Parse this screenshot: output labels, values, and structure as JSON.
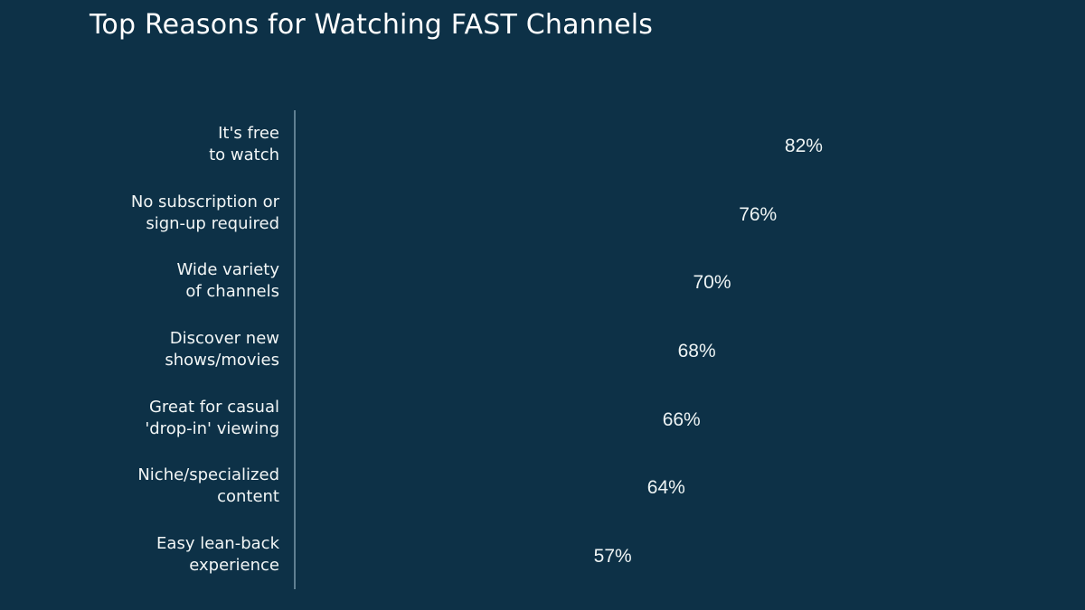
{
  "chart_data": {
    "type": "bar",
    "orientation": "horizontal",
    "title": "Top Reasons for Watching FAST Channels",
    "xlabel": "",
    "ylabel": "",
    "grid": false,
    "legend": null,
    "xlim": [
      0,
      100
    ],
    "categories": [
      "It's free to watch",
      "No subscription or sign-up required",
      "Wide variety of channels",
      "Discover new shows/movies",
      "Great for casual 'drop-in' viewing",
      "Niche/specialized content",
      "Easy lean-back experience"
    ],
    "values": [
      82,
      76,
      70,
      68,
      66,
      64,
      57
    ],
    "value_labels": [
      "82%",
      "76%",
      "70%",
      "68%",
      "66%",
      "64%",
      "57%"
    ]
  },
  "colors": {
    "background": "#0d3147",
    "bar": "#0d3147",
    "axis": "#5f7f92",
    "text": "#f2f6f6"
  },
  "labels": [
    {
      "line1": "It's free",
      "line2": "to watch"
    },
    {
      "line1": "No subscription or",
      "line2": "sign-up required"
    },
    {
      "line1": "Wide variety",
      "line2": "of channels"
    },
    {
      "line1": "Discover new",
      "line2": "shows/movies"
    },
    {
      "line1": "Great for casual",
      "line2": "'drop-in' viewing"
    },
    {
      "line1": "Niche/specialized",
      "line2": "content"
    },
    {
      "line1": "Easy lean-back",
      "line2": "experience"
    }
  ]
}
